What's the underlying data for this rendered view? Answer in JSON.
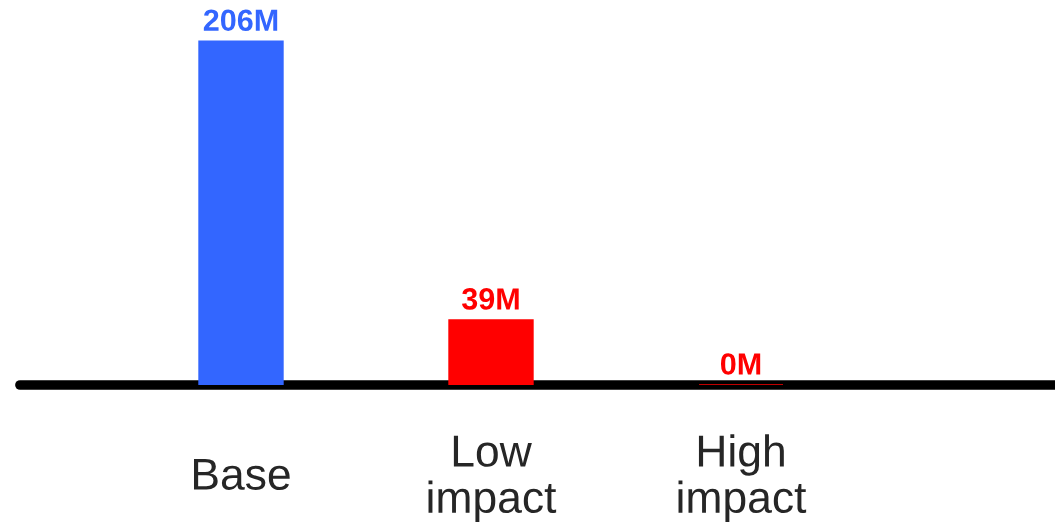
{
  "chart_data": {
    "type": "bar",
    "categories": [
      "Base",
      "Low\nimpact",
      "High\nimpact"
    ],
    "values": [
      206,
      39,
      0
    ],
    "colors": [
      "#3366ff",
      "#ff0000",
      "#ff0000"
    ],
    "value_labels": [
      "206M",
      "39M",
      "0M"
    ],
    "grid": false,
    "legend": false,
    "tick_labels": "x"
  }
}
